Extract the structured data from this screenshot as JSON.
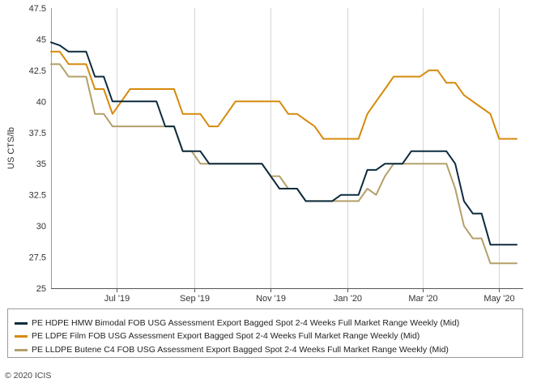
{
  "chart_data": {
    "type": "line",
    "title": "",
    "xlabel": "",
    "ylabel": "US CTS/lb",
    "ylim": [
      25,
      47.5
    ],
    "yticks": [
      "25",
      "27.5",
      "30",
      "32.5",
      "35",
      "37.5",
      "40",
      "42.5",
      "45",
      "47.5"
    ],
    "xlim": [
      "2019-05-10",
      "2020-05-15"
    ],
    "xticks": [
      {
        "label": "Jul '19",
        "date": "2019-07-01"
      },
      {
        "label": "Sep '19",
        "date": "2019-09-01"
      },
      {
        "label": "Nov '19",
        "date": "2019-11-01"
      },
      {
        "label": "Jan '20",
        "date": "2020-01-01"
      },
      {
        "label": "Mar '20",
        "date": "2020-03-01"
      },
      {
        "label": "May '20",
        "date": "2020-05-01"
      }
    ],
    "grid": "vertical",
    "legend_position": "bottom",
    "series": [
      {
        "name": "PE HDPE HMW Bimodal FOB USG Assessment Export Bagged Spot 2-4 Weeks Full Market Range Weekly (Mid)",
        "color": "#0d2b3e",
        "points": [
          [
            "2019-05-10",
            44.75
          ],
          [
            "2019-05-17",
            44.5
          ],
          [
            "2019-05-24",
            44.0
          ],
          [
            "2019-05-31",
            44.0
          ],
          [
            "2019-06-07",
            44.0
          ],
          [
            "2019-06-14",
            42.0
          ],
          [
            "2019-06-21",
            42.0
          ],
          [
            "2019-06-28",
            40.0
          ],
          [
            "2019-07-05",
            40.0
          ],
          [
            "2019-07-12",
            40.0
          ],
          [
            "2019-07-19",
            40.0
          ],
          [
            "2019-07-26",
            40.0
          ],
          [
            "2019-08-02",
            40.0
          ],
          [
            "2019-08-09",
            38.0
          ],
          [
            "2019-08-16",
            38.0
          ],
          [
            "2019-08-23",
            36.0
          ],
          [
            "2019-08-30",
            36.0
          ],
          [
            "2019-09-06",
            36.0
          ],
          [
            "2019-09-13",
            35.0
          ],
          [
            "2019-09-20",
            35.0
          ],
          [
            "2019-09-27",
            35.0
          ],
          [
            "2019-10-04",
            35.0
          ],
          [
            "2019-10-11",
            35.0
          ],
          [
            "2019-10-18",
            35.0
          ],
          [
            "2019-10-25",
            35.0
          ],
          [
            "2019-11-01",
            34.0
          ],
          [
            "2019-11-08",
            33.0
          ],
          [
            "2019-11-15",
            33.0
          ],
          [
            "2019-11-22",
            33.0
          ],
          [
            "2019-11-29",
            32.0
          ],
          [
            "2019-12-06",
            32.0
          ],
          [
            "2019-12-13",
            32.0
          ],
          [
            "2019-12-20",
            32.0
          ],
          [
            "2019-12-27",
            32.5
          ],
          [
            "2020-01-03",
            32.5
          ],
          [
            "2020-01-10",
            32.5
          ],
          [
            "2020-01-17",
            34.5
          ],
          [
            "2020-01-24",
            34.5
          ],
          [
            "2020-01-31",
            35.0
          ],
          [
            "2020-02-07",
            35.0
          ],
          [
            "2020-02-14",
            35.0
          ],
          [
            "2020-02-21",
            36.0
          ],
          [
            "2020-02-28",
            36.0
          ],
          [
            "2020-03-06",
            36.0
          ],
          [
            "2020-03-13",
            36.0
          ],
          [
            "2020-03-20",
            36.0
          ],
          [
            "2020-03-27",
            35.0
          ],
          [
            "2020-04-03",
            32.0
          ],
          [
            "2020-04-10",
            31.0
          ],
          [
            "2020-04-17",
            31.0
          ],
          [
            "2020-04-24",
            28.5
          ],
          [
            "2020-05-01",
            28.5
          ],
          [
            "2020-05-08",
            28.5
          ],
          [
            "2020-05-15",
            28.5
          ]
        ]
      },
      {
        "name": "PE LDPE Film FOB USG Assessment Export Bagged Spot 2-4 Weeks Full Market Range Weekly (Mid)",
        "color": "#d68a0c",
        "points": [
          [
            "2019-05-10",
            44.0
          ],
          [
            "2019-05-17",
            44.0
          ],
          [
            "2019-05-24",
            43.0
          ],
          [
            "2019-05-31",
            43.0
          ],
          [
            "2019-06-07",
            43.0
          ],
          [
            "2019-06-14",
            41.0
          ],
          [
            "2019-06-21",
            41.0
          ],
          [
            "2019-06-28",
            39.0
          ],
          [
            "2019-07-05",
            40.0
          ],
          [
            "2019-07-12",
            41.0
          ],
          [
            "2019-07-19",
            41.0
          ],
          [
            "2019-07-26",
            41.0
          ],
          [
            "2019-08-02",
            41.0
          ],
          [
            "2019-08-09",
            41.0
          ],
          [
            "2019-08-16",
            41.0
          ],
          [
            "2019-08-23",
            39.0
          ],
          [
            "2019-08-30",
            39.0
          ],
          [
            "2019-09-06",
            39.0
          ],
          [
            "2019-09-13",
            38.0
          ],
          [
            "2019-09-20",
            38.0
          ],
          [
            "2019-09-27",
            39.0
          ],
          [
            "2019-10-04",
            40.0
          ],
          [
            "2019-10-11",
            40.0
          ],
          [
            "2019-10-18",
            40.0
          ],
          [
            "2019-10-25",
            40.0
          ],
          [
            "2019-11-01",
            40.0
          ],
          [
            "2019-11-08",
            40.0
          ],
          [
            "2019-11-15",
            39.0
          ],
          [
            "2019-11-22",
            39.0
          ],
          [
            "2019-11-29",
            38.5
          ],
          [
            "2019-12-06",
            38.0
          ],
          [
            "2019-12-13",
            37.0
          ],
          [
            "2019-12-20",
            37.0
          ],
          [
            "2019-12-27",
            37.0
          ],
          [
            "2020-01-03",
            37.0
          ],
          [
            "2020-01-10",
            37.0
          ],
          [
            "2020-01-17",
            39.0
          ],
          [
            "2020-01-24",
            40.0
          ],
          [
            "2020-01-31",
            41.0
          ],
          [
            "2020-02-07",
            42.0
          ],
          [
            "2020-02-14",
            42.0
          ],
          [
            "2020-02-21",
            42.0
          ],
          [
            "2020-02-28",
            42.0
          ],
          [
            "2020-03-06",
            42.5
          ],
          [
            "2020-03-13",
            42.5
          ],
          [
            "2020-03-20",
            41.5
          ],
          [
            "2020-03-27",
            41.5
          ],
          [
            "2020-04-03",
            40.5
          ],
          [
            "2020-04-10",
            40.0
          ],
          [
            "2020-04-17",
            39.5
          ],
          [
            "2020-04-24",
            39.0
          ],
          [
            "2020-05-01",
            37.0
          ],
          [
            "2020-05-08",
            37.0
          ],
          [
            "2020-05-15",
            37.0
          ]
        ]
      },
      {
        "name": "PE LLDPE Butene C4 FOB USG Assessment Export Bagged Spot 2-4 Weeks Full Market Range Weekly (Mid)",
        "color": "#b3a06a",
        "points": [
          [
            "2019-05-10",
            43.0
          ],
          [
            "2019-05-17",
            43.0
          ],
          [
            "2019-05-24",
            42.0
          ],
          [
            "2019-05-31",
            42.0
          ],
          [
            "2019-06-07",
            42.0
          ],
          [
            "2019-06-14",
            39.0
          ],
          [
            "2019-06-21",
            39.0
          ],
          [
            "2019-06-28",
            38.0
          ],
          [
            "2019-07-05",
            38.0
          ],
          [
            "2019-07-12",
            38.0
          ],
          [
            "2019-07-19",
            38.0
          ],
          [
            "2019-07-26",
            38.0
          ],
          [
            "2019-08-02",
            38.0
          ],
          [
            "2019-08-09",
            38.0
          ],
          [
            "2019-08-16",
            38.0
          ],
          [
            "2019-08-23",
            36.0
          ],
          [
            "2019-08-30",
            36.0
          ],
          [
            "2019-09-06",
            35.0
          ],
          [
            "2019-09-13",
            35.0
          ],
          [
            "2019-09-20",
            35.0
          ],
          [
            "2019-09-27",
            35.0
          ],
          [
            "2019-10-04",
            35.0
          ],
          [
            "2019-10-11",
            35.0
          ],
          [
            "2019-10-18",
            35.0
          ],
          [
            "2019-10-25",
            35.0
          ],
          [
            "2019-11-01",
            34.0
          ],
          [
            "2019-11-08",
            34.0
          ],
          [
            "2019-11-15",
            33.0
          ],
          [
            "2019-11-22",
            33.0
          ],
          [
            "2019-11-29",
            32.0
          ],
          [
            "2019-12-06",
            32.0
          ],
          [
            "2019-12-13",
            32.0
          ],
          [
            "2019-12-20",
            32.0
          ],
          [
            "2019-12-27",
            32.0
          ],
          [
            "2020-01-03",
            32.0
          ],
          [
            "2020-01-10",
            32.0
          ],
          [
            "2020-01-17",
            33.0
          ],
          [
            "2020-01-24",
            32.5
          ],
          [
            "2020-01-31",
            34.0
          ],
          [
            "2020-02-07",
            35.0
          ],
          [
            "2020-02-14",
            35.0
          ],
          [
            "2020-02-21",
            35.0
          ],
          [
            "2020-02-28",
            35.0
          ],
          [
            "2020-03-06",
            35.0
          ],
          [
            "2020-03-13",
            35.0
          ],
          [
            "2020-03-20",
            35.0
          ],
          [
            "2020-03-27",
            33.0
          ],
          [
            "2020-04-03",
            30.0
          ],
          [
            "2020-04-10",
            29.0
          ],
          [
            "2020-04-17",
            29.0
          ],
          [
            "2020-04-24",
            27.0
          ],
          [
            "2020-05-01",
            27.0
          ],
          [
            "2020-05-08",
            27.0
          ],
          [
            "2020-05-15",
            27.0
          ]
        ]
      }
    ]
  },
  "footer": {
    "copyright": "© 2020 ICIS"
  }
}
